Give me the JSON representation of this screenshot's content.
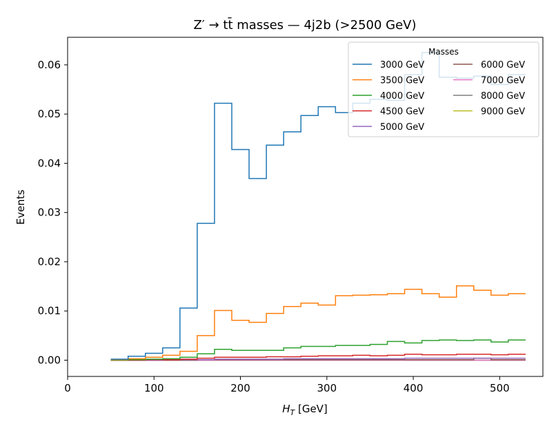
{
  "chart_data": {
    "type": "line",
    "style": "step",
    "title": "Z′ → tt̄ masses — 4j2b (>2500 GeV)",
    "xlabel": "H_T [GeV]",
    "ylabel": "Events",
    "xlim": [
      0,
      550
    ],
    "ylim": [
      -0.0033,
      0.0656
    ],
    "xticks": [
      0,
      100,
      200,
      300,
      400,
      500
    ],
    "yticks": [
      0.0,
      0.01,
      0.02,
      0.03,
      0.04,
      0.05,
      0.06
    ],
    "ytick_labels": [
      "0.00",
      "0.01",
      "0.02",
      "0.03",
      "0.04",
      "0.05",
      "0.06"
    ],
    "grid": false,
    "legend": {
      "title": "Masses",
      "placement": "top-right",
      "columns": 2
    },
    "bin_edges": [
      50,
      70,
      90,
      110,
      130,
      150,
      170,
      190,
      210,
      230,
      250,
      270,
      290,
      310,
      330,
      350,
      370,
      390,
      410,
      430,
      450,
      470,
      490,
      510,
      530
    ],
    "series": [
      {
        "name": "3000 GeV",
        "color": "#1f77b4",
        "values": [
          0.0002,
          0.0008,
          0.0014,
          0.0025,
          0.0106,
          0.0278,
          0.0522,
          0.0428,
          0.0369,
          0.0437,
          0.0464,
          0.0497,
          0.0515,
          0.0503,
          0.0522,
          0.053,
          0.0528,
          0.058,
          0.0625,
          0.0575,
          0.0573,
          0.0577,
          0.056,
          0.058
        ]
      },
      {
        "name": "3500 GeV",
        "color": "#ff7f0e",
        "values": [
          0.0001,
          0.0003,
          0.0006,
          0.001,
          0.0018,
          0.005,
          0.0101,
          0.0081,
          0.0077,
          0.0095,
          0.0109,
          0.0116,
          0.0112,
          0.0131,
          0.0132,
          0.0133,
          0.0135,
          0.0144,
          0.0135,
          0.0128,
          0.0151,
          0.0142,
          0.0132,
          0.0135
        ]
      },
      {
        "name": "4000 GeV",
        "color": "#2ca02c",
        "values": [
          0.0,
          0.0001,
          0.0002,
          0.0003,
          0.0006,
          0.0013,
          0.0022,
          0.002,
          0.002,
          0.002,
          0.0025,
          0.0028,
          0.0028,
          0.003,
          0.003,
          0.0032,
          0.0038,
          0.0035,
          0.004,
          0.0041,
          0.004,
          0.0041,
          0.0037,
          0.0041
        ]
      },
      {
        "name": "4500 GeV",
        "color": "#d62728",
        "values": [
          0.0,
          0.0,
          0.0001,
          0.0001,
          0.0002,
          0.0004,
          0.0006,
          0.0006,
          0.0006,
          0.0007,
          0.0007,
          0.0008,
          0.0009,
          0.0009,
          0.001,
          0.0009,
          0.001,
          0.0012,
          0.0011,
          0.0011,
          0.0012,
          0.0012,
          0.0011,
          0.0012
        ]
      },
      {
        "name": "5000 GeV",
        "color": "#9467bd",
        "values": [
          0.0,
          0.0,
          0.0,
          0.0001,
          0.0001,
          0.0001,
          0.0002,
          0.0002,
          0.0002,
          0.0002,
          0.0003,
          0.0003,
          0.0003,
          0.0003,
          0.0003,
          0.0003,
          0.0003,
          0.0004,
          0.0004,
          0.0004,
          0.0004,
          0.0004,
          0.0004,
          0.0004
        ]
      },
      {
        "name": "6000 GeV",
        "color": "#8c564b",
        "values": [
          0.0,
          0.0,
          0.0,
          0.0,
          0.0,
          0.0001,
          0.0001,
          0.0001,
          0.0001,
          0.0001,
          0.0001,
          0.0001,
          0.0001,
          0.0001,
          0.0001,
          0.0001,
          0.0001,
          0.0001,
          0.0001,
          0.0001,
          0.0001,
          0.0004,
          0.0001,
          0.0001
        ]
      },
      {
        "name": "7000 GeV",
        "color": "#e377c2",
        "values": [
          0.0,
          0.0,
          0.0,
          0.0,
          0.0,
          0.0,
          0.0,
          0.0,
          0.0,
          0.0,
          0.0,
          0.0,
          0.0,
          0.0,
          0.0,
          0.0,
          0.0,
          0.0,
          0.0,
          0.0,
          0.0,
          0.0,
          0.0,
          0.0
        ]
      },
      {
        "name": "8000 GeV",
        "color": "#7f7f7f",
        "values": [
          0.0,
          0.0,
          0.0,
          0.0,
          0.0,
          0.0,
          0.0,
          0.0,
          0.0,
          0.0,
          0.0,
          0.0,
          0.0,
          0.0,
          0.0,
          0.0,
          0.0,
          0.0,
          0.0,
          0.0,
          0.0,
          0.0,
          0.0,
          0.0
        ]
      },
      {
        "name": "9000 GeV",
        "color": "#bcbd22",
        "values": [
          0.0,
          0.0,
          0.0,
          0.0,
          0.0,
          0.0,
          0.0,
          0.0,
          0.0,
          0.0,
          0.0,
          0.0,
          0.0,
          0.0,
          0.0,
          0.0,
          0.0,
          0.0,
          0.0,
          0.0,
          0.0,
          0.0,
          0.0,
          0.0
        ]
      }
    ]
  }
}
